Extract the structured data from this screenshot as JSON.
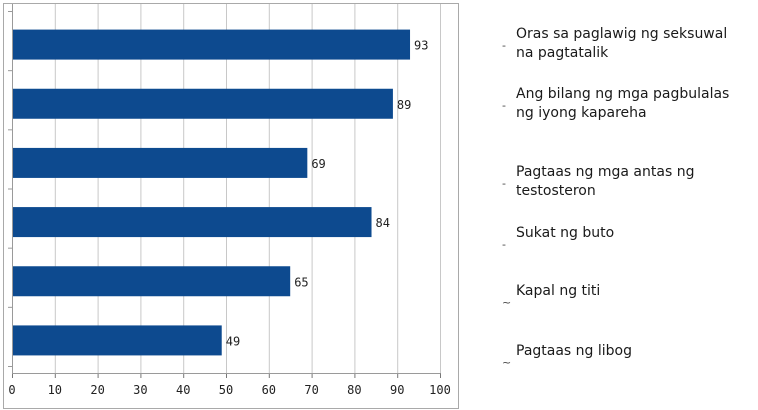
{
  "chart_data": {
    "type": "bar",
    "orientation": "horizontal",
    "categories": [
      "Oras sa paglawig ng seksuwal na pagtatalik",
      "Ang bilang ng mga pagbulalas ng iyong kapareha",
      "Pagtaas ng mga antas ng testosteron",
      "Sukat ng buto",
      "Kapal ng titi",
      "Pagtaas ng libog"
    ],
    "values": [
      93,
      89,
      69,
      84,
      65,
      49
    ],
    "xlim": [
      0,
      100
    ],
    "xticks": [
      0,
      10,
      20,
      30,
      40,
      50,
      60,
      70,
      80,
      90,
      100
    ],
    "grid": "vertical",
    "legend_placement": "right",
    "colors": {
      "bar": "#0d4a8f",
      "grid": "#c8c8c8",
      "frame": "#a9a9a9"
    }
  }
}
